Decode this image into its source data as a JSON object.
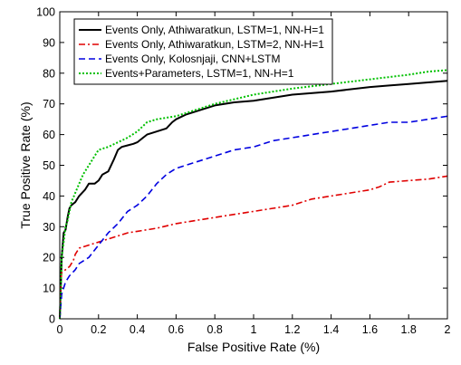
{
  "chart_data": {
    "type": "line",
    "xlabel": "False Positive Rate (%)",
    "ylabel": "True Positive Rate (%)",
    "xlim": [
      0,
      2
    ],
    "ylim": [
      0,
      100
    ],
    "xticks": [
      0,
      0.2,
      0.4,
      0.6,
      0.8,
      1,
      1.2,
      1.4,
      1.6,
      1.8,
      2
    ],
    "xtick_labels": [
      "0",
      "0.2",
      "0.4",
      "0.6",
      "0.8",
      "1",
      "1.2",
      "1.4",
      "1.6",
      "1.8",
      "2"
    ],
    "yticks": [
      0,
      10,
      20,
      30,
      40,
      50,
      60,
      70,
      80,
      90,
      100
    ],
    "ytick_labels": [
      "0",
      "10",
      "20",
      "30",
      "40",
      "50",
      "60",
      "70",
      "80",
      "90",
      "100"
    ],
    "grid": false,
    "legend_position": "top-left",
    "series": [
      {
        "name": "Events Only, Athiwaratkun, LSTM=1, NN-H=1",
        "color": "#000000",
        "dash": "solid",
        "x": [
          0,
          0.005,
          0.01,
          0.02,
          0.03,
          0.04,
          0.05,
          0.06,
          0.08,
          0.1,
          0.13,
          0.15,
          0.18,
          0.2,
          0.22,
          0.25,
          0.28,
          0.3,
          0.32,
          0.35,
          0.38,
          0.4,
          0.43,
          0.45,
          0.5,
          0.55,
          0.58,
          0.6,
          0.65,
          0.7,
          0.8,
          0.9,
          1.0,
          1.1,
          1.2,
          1.4,
          1.6,
          1.7,
          1.8,
          1.9,
          2.0
        ],
        "y": [
          0,
          10,
          20,
          28,
          29,
          33,
          36,
          37,
          38,
          40,
          42,
          44,
          44,
          45,
          47,
          48,
          52,
          55,
          56,
          56.5,
          57,
          57.5,
          59,
          60,
          61,
          62,
          64,
          65,
          66.5,
          67.5,
          69.5,
          70.5,
          71,
          72,
          73,
          74,
          75.5,
          76,
          76.5,
          77,
          77.5
        ]
      },
      {
        "name": "Events Only, Athiwaratkun, LSTM=2, NN-H=1",
        "color": "#e00000",
        "dash": "dash-dot",
        "x": [
          0,
          0.005,
          0.01,
          0.03,
          0.05,
          0.07,
          0.08,
          0.1,
          0.15,
          0.2,
          0.25,
          0.3,
          0.35,
          0.4,
          0.5,
          0.6,
          0.7,
          0.8,
          0.9,
          1.0,
          1.1,
          1.2,
          1.3,
          1.4,
          1.5,
          1.6,
          1.65,
          1.7,
          1.8,
          1.9,
          2.0
        ],
        "y": [
          0,
          12,
          15,
          16,
          17,
          19,
          21,
          23,
          24,
          25,
          26,
          27,
          28,
          28.5,
          29.5,
          31,
          32,
          33,
          34,
          35,
          36,
          37,
          39,
          40,
          41,
          42,
          43,
          44.5,
          45,
          45.5,
          46.5
        ]
      },
      {
        "name": "Events Only, Kolosnjaji, CNN+LSTM",
        "color": "#0000e0",
        "dash": "dash",
        "x": [
          0,
          0.005,
          0.01,
          0.03,
          0.05,
          0.08,
          0.1,
          0.15,
          0.2,
          0.25,
          0.3,
          0.35,
          0.4,
          0.45,
          0.5,
          0.55,
          0.6,
          0.7,
          0.8,
          0.9,
          1.0,
          1.1,
          1.2,
          1.3,
          1.4,
          1.5,
          1.6,
          1.7,
          1.8,
          1.9,
          2.0
        ],
        "y": [
          0,
          4,
          8,
          12,
          14,
          16,
          18,
          20,
          24,
          28,
          31,
          35,
          37,
          40,
          44,
          47,
          49,
          51,
          53,
          55,
          56,
          58,
          59,
          60,
          61,
          62,
          63,
          64,
          64,
          65,
          66
        ]
      },
      {
        "name": "Events+Parameters, LSTM=1, NN-H=1",
        "color": "#00c000",
        "dash": "dot",
        "x": [
          0,
          0.005,
          0.01,
          0.02,
          0.03,
          0.04,
          0.05,
          0.06,
          0.08,
          0.1,
          0.12,
          0.15,
          0.18,
          0.2,
          0.25,
          0.3,
          0.35,
          0.4,
          0.45,
          0.5,
          0.55,
          0.6,
          0.7,
          0.8,
          0.9,
          1.0,
          1.2,
          1.4,
          1.6,
          1.8,
          1.9,
          2.0
        ],
        "y": [
          0,
          10,
          20,
          25,
          30,
          32,
          35,
          38,
          41,
          44,
          47,
          50,
          53,
          55,
          56,
          57.5,
          59,
          61,
          64,
          65,
          65.5,
          66,
          68,
          70,
          71.5,
          73,
          75,
          76.5,
          78,
          79.5,
          80.5,
          81
        ]
      }
    ]
  }
}
